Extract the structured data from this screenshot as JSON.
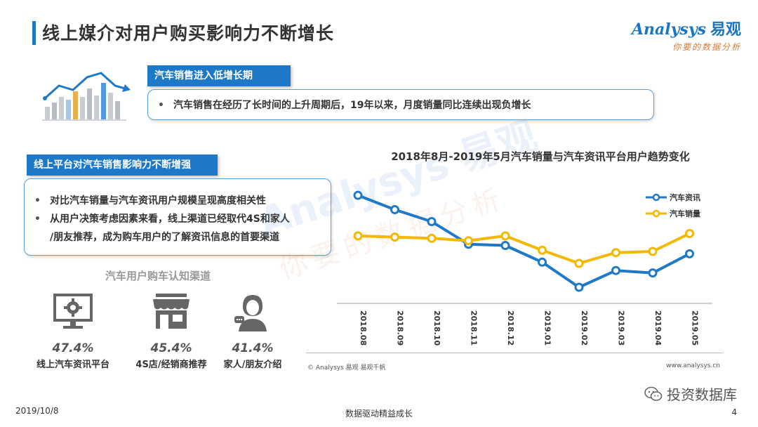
{
  "header": {
    "title": "线上媒介对用户购买影响力不断增长",
    "brand_name": "Analysys",
    "brand_cn": "易观",
    "brand_slogan": "你要的数据分析"
  },
  "section1": {
    "tag": "汽车销售进入低增长期",
    "bullets": [
      "汽车销售在经历了长时间的上升周期后，19年以来，月度销量同比连续出现负增长"
    ]
  },
  "section2": {
    "tag": "线上平台对汽车销售影响力不断增强",
    "bullet1": "对比汽车销量与汽车资讯用户规模呈现高度相关性",
    "bullet2_line1": "从用户决策考虑因素来看，线上渠道已经取代4S和家人",
    "bullet2_line2": "/朋友推荐，成为购车用户的了解资讯信息的首要渠道"
  },
  "channels": {
    "title": "汽车用户购车认知渠道",
    "items": [
      {
        "pct": "47.4%",
        "label": "线上汽车资讯平台",
        "icon": "monitor-gear-icon"
      },
      {
        "pct": "45.4%",
        "label": "4S店/经销商推荐",
        "icon": "storefront-icon"
      },
      {
        "pct": "41.4%",
        "label": "家人/朋友介绍",
        "icon": "person-chat-icon"
      }
    ]
  },
  "chart_data": {
    "type": "line",
    "title": "2018年8月-2019年5月汽车销量与汽车资讯平台用户趋势变化",
    "categories": [
      "2018.08",
      "2018.09",
      "2018.10",
      "2018.11",
      "2018.12",
      "2019.01",
      "2019.02",
      "2019.03",
      "2019.04",
      "2019.05"
    ],
    "series": [
      {
        "name": "汽车资讯",
        "color": "#1f78c8",
        "values": [
          87,
          75,
          65,
          46,
          45,
          31,
          10,
          24,
          22,
          38
        ]
      },
      {
        "name": "汽车销量",
        "color": "#f5b800",
        "values": [
          53,
          52,
          51,
          49,
          53,
          41,
          30,
          39,
          40,
          55
        ]
      }
    ],
    "ylim": [
      0,
      100
    ],
    "grid": false,
    "legend": "right",
    "source": "© Analysys 易观 易观千帆",
    "site": "www.analysys.cn"
  },
  "watermark": {
    "text1": "Analysys 易观",
    "text2": "你要的数据分析"
  },
  "footer": {
    "date": "2019/10/8",
    "center": "数据驱动精益成长",
    "page": "4",
    "wechat": "投资数据库"
  }
}
